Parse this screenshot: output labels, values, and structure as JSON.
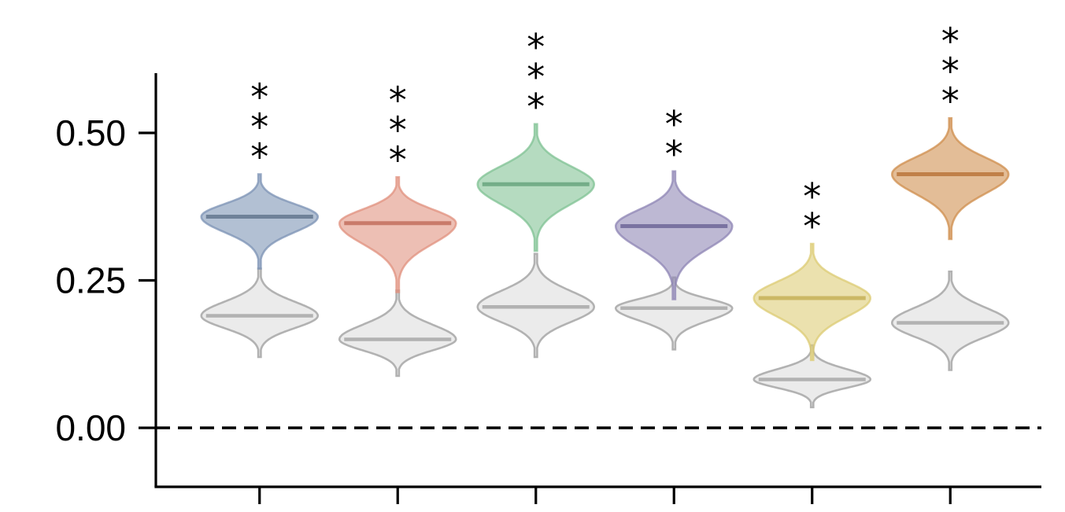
{
  "chart_data": {
    "type": "violin",
    "title": "",
    "xlabel": "",
    "ylabel": "",
    "ylim": [
      -0.1,
      0.6
    ],
    "yticks": [
      0.0,
      0.25,
      0.5
    ],
    "ytick_labels": [
      "0.00",
      "0.25",
      "0.50"
    ],
    "reference_line": {
      "y": 0.0,
      "style": "dashed"
    },
    "grid": false,
    "legend": "none",
    "groups": [
      {
        "color": "#7b92b4",
        "median_color": "#6f8299",
        "main": {
          "median": 0.358,
          "min": 0.27,
          "max": 0.43
        },
        "baseline": {
          "median": 0.19,
          "min": 0.12,
          "max": 0.27
        },
        "significance": "***"
      },
      {
        "color": "#e0907e",
        "median_color": "#c97b6b",
        "main": {
          "median": 0.347,
          "min": 0.23,
          "max": 0.425
        },
        "baseline": {
          "median": 0.15,
          "min": 0.088,
          "max": 0.233
        },
        "significance": "***"
      },
      {
        "color": "#7fc193",
        "median_color": "#74ad88",
        "main": {
          "median": 0.413,
          "min": 0.3,
          "max": 0.515
        },
        "baseline": {
          "median": 0.205,
          "min": 0.12,
          "max": 0.295
        },
        "significance": "***"
      },
      {
        "color": "#8d84b4",
        "median_color": "#7a73a1",
        "main": {
          "median": 0.342,
          "min": 0.218,
          "max": 0.435
        },
        "baseline": {
          "median": 0.203,
          "min": 0.133,
          "max": 0.255
        },
        "significance": "**"
      },
      {
        "color": "#dccb73",
        "median_color": "#cbb864",
        "main": {
          "median": 0.22,
          "min": 0.115,
          "max": 0.312
        },
        "baseline": {
          "median": 0.082,
          "min": 0.035,
          "max": 0.14
        },
        "significance": "**"
      },
      {
        "color": "#cf8d4c",
        "median_color": "#c08048",
        "main": {
          "median": 0.43,
          "min": 0.32,
          "max": 0.525
        },
        "baseline": {
          "median": 0.178,
          "min": 0.098,
          "max": 0.265
        },
        "significance": "***"
      }
    ],
    "baseline_style": {
      "fill": "#e8e8e8",
      "stroke": "#b2b2b2"
    }
  }
}
